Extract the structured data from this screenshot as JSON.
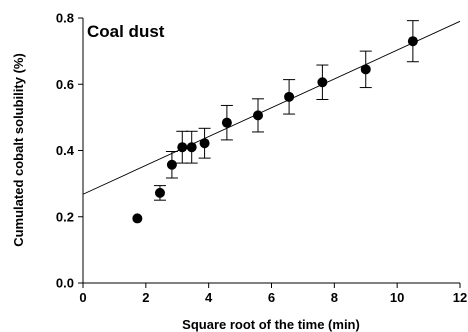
{
  "chart_data": {
    "type": "scatter",
    "title": "Coal dust",
    "xlabel": "Square root of the time (min)",
    "ylabel": "Cumulated cobalt solubility (%)",
    "xlim": [
      0,
      12
    ],
    "ylim": [
      0,
      0.8
    ],
    "x_ticks": [
      "0",
      "2",
      "4",
      "6",
      "8",
      "10",
      "12"
    ],
    "y_ticks": [
      "0.0",
      "0.2",
      "0.4",
      "0.6",
      "0.8"
    ],
    "grid": false,
    "points": [
      {
        "x": 1.73,
        "y": 0.195,
        "err": 0.0
      },
      {
        "x": 2.45,
        "y": 0.272,
        "err": 0.022
      },
      {
        "x": 2.83,
        "y": 0.357,
        "err": 0.04
      },
      {
        "x": 3.16,
        "y": 0.41,
        "err": 0.048
      },
      {
        "x": 3.46,
        "y": 0.41,
        "err": 0.048
      },
      {
        "x": 3.87,
        "y": 0.422,
        "err": 0.045
      },
      {
        "x": 4.58,
        "y": 0.484,
        "err": 0.052
      },
      {
        "x": 5.57,
        "y": 0.506,
        "err": 0.05
      },
      {
        "x": 6.56,
        "y": 0.562,
        "err": 0.052
      },
      {
        "x": 7.62,
        "y": 0.606,
        "err": 0.052
      },
      {
        "x": 9.0,
        "y": 0.645,
        "err": 0.055
      },
      {
        "x": 10.5,
        "y": 0.73,
        "err": 0.062
      }
    ],
    "trendline": {
      "x": [
        0,
        12
      ],
      "y": [
        0.268,
        0.79
      ]
    },
    "marker_color": "#000000"
  }
}
